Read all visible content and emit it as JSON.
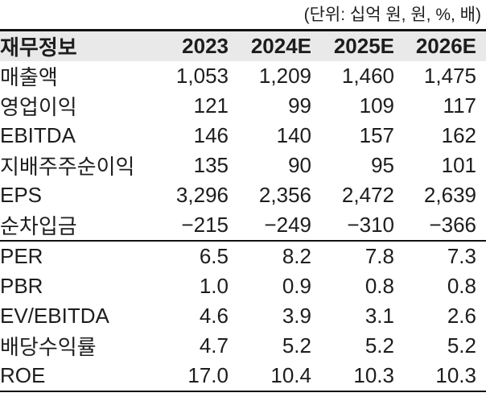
{
  "unit_note": "(단위: 십억 원, 원, %, 배)",
  "colors": {
    "header_background": "#e9e9e9",
    "text": "#1d1d1d",
    "rule_line": "#111111"
  },
  "table": {
    "headers": [
      "재무정보",
      "2023",
      "2024E",
      "2025E",
      "2026E"
    ],
    "rows": [
      {
        "label": "매출액",
        "values": [
          "1,053",
          "1,209",
          "1,460",
          "1,475"
        ]
      },
      {
        "label": "영업이익",
        "values": [
          "121",
          "99",
          "109",
          "117"
        ]
      },
      {
        "label": "EBITDA",
        "values": [
          "146",
          "140",
          "157",
          "162"
        ]
      },
      {
        "label": "지배주주순이익",
        "values": [
          "135",
          "90",
          "95",
          "101"
        ]
      },
      {
        "label": "EPS",
        "values": [
          "3,296",
          "2,356",
          "2,472",
          "2,639"
        ]
      },
      {
        "label": "순차입금",
        "values": [
          "−215",
          "−249",
          "−310",
          "−366"
        ]
      },
      {
        "label": "PER",
        "values": [
          "6.5",
          "8.2",
          "7.8",
          "7.3"
        ]
      },
      {
        "label": "PBR",
        "values": [
          "1.0",
          "0.9",
          "0.8",
          "0.8"
        ]
      },
      {
        "label": "EV/EBITDA",
        "values": [
          "4.6",
          "3.9",
          "3.1",
          "2.6"
        ]
      },
      {
        "label": "배당수익률",
        "values": [
          "4.7",
          "5.2",
          "5.2",
          "5.2"
        ]
      },
      {
        "label": "ROE",
        "values": [
          "17.0",
          "10.4",
          "10.3",
          "10.3"
        ]
      }
    ]
  },
  "chart_data": {
    "type": "table",
    "title": "재무정보",
    "unit_note": "(단위: 십억 원, 원, %, 배)",
    "columns": [
      "재무정보",
      "2023",
      "2024E",
      "2025E",
      "2026E"
    ],
    "rows": [
      {
        "metric": "매출액",
        "values": [
          1053,
          1209,
          1460,
          1475
        ]
      },
      {
        "metric": "영업이익",
        "values": [
          121,
          99,
          109,
          117
        ]
      },
      {
        "metric": "EBITDA",
        "values": [
          146,
          140,
          157,
          162
        ]
      },
      {
        "metric": "지배주주순이익",
        "values": [
          135,
          90,
          95,
          101
        ]
      },
      {
        "metric": "EPS",
        "values": [
          3296,
          2356,
          2472,
          2639
        ]
      },
      {
        "metric": "순차입금",
        "values": [
          -215,
          -249,
          -310,
          -366
        ]
      },
      {
        "metric": "PER",
        "values": [
          6.5,
          8.2,
          7.8,
          7.3
        ]
      },
      {
        "metric": "PBR",
        "values": [
          1.0,
          0.9,
          0.8,
          0.8
        ]
      },
      {
        "metric": "EV/EBITDA",
        "values": [
          4.6,
          3.9,
          3.1,
          2.6
        ]
      },
      {
        "metric": "배당수익률",
        "values": [
          4.7,
          5.2,
          5.2,
          5.2
        ]
      },
      {
        "metric": "ROE",
        "values": [
          17.0,
          10.4,
          10.3,
          10.3
        ]
      }
    ],
    "layout": {
      "unit_note_position": "top-right",
      "section_break_after_row": "순차입금",
      "header_background": "#e9e9e9",
      "first_column_align": "left",
      "value_columns_align": "right"
    }
  }
}
